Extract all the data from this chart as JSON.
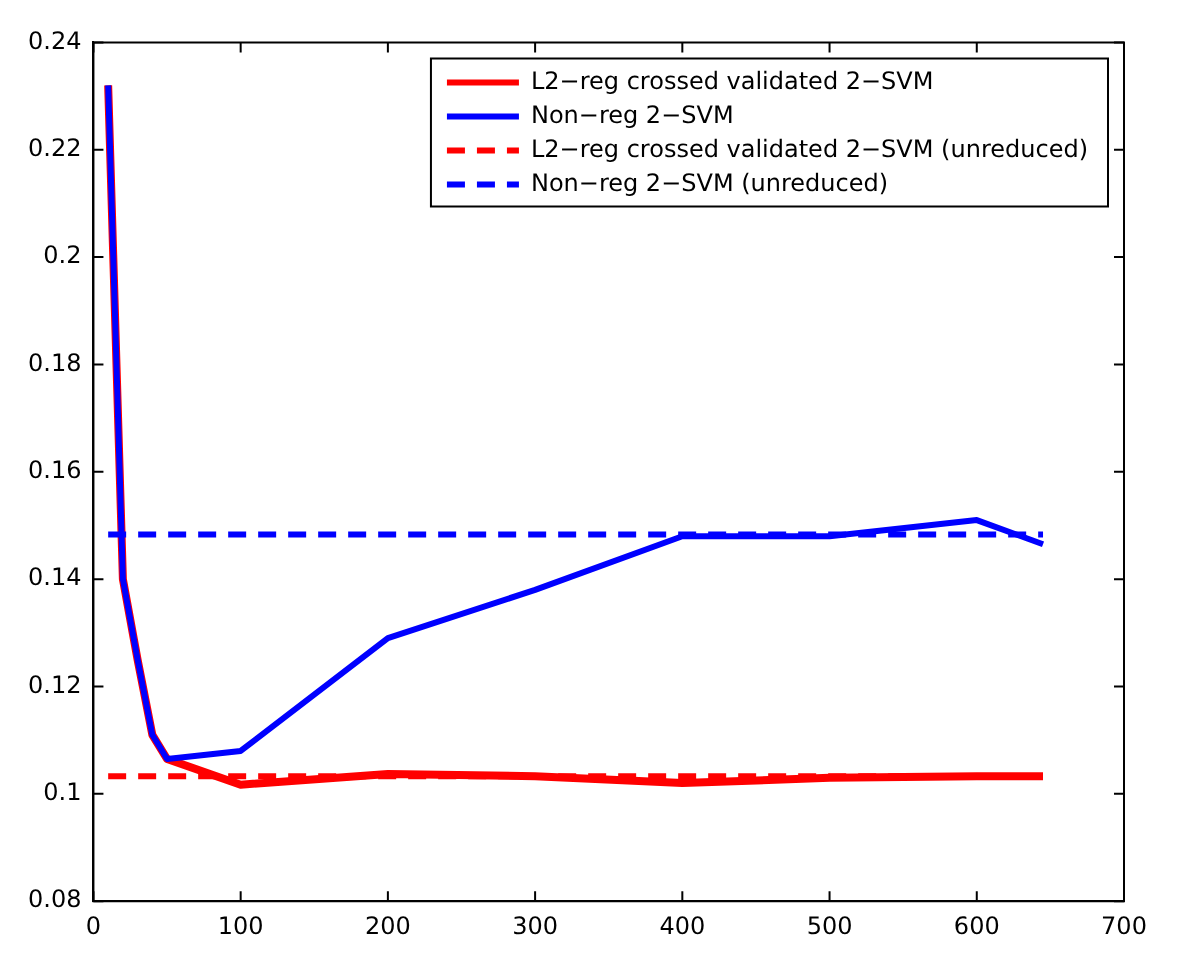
{
  "chart_data": {
    "type": "line",
    "xlim": [
      0,
      700
    ],
    "xticks": [
      0,
      100,
      200,
      300,
      400,
      500,
      600,
      700
    ],
    "ylim": [
      0.08,
      0.24
    ],
    "yticks": [
      0.08,
      0.1,
      0.12,
      0.14,
      0.16,
      0.18,
      0.2,
      0.22,
      0.24
    ],
    "grid": false,
    "legend": "top right",
    "marker": "none",
    "series": [
      {
        "name": "L2−reg crossed validated 2−SVM",
        "color": "#ff0000",
        "line_style": "solid",
        "x": [
          10,
          20,
          30,
          40,
          50,
          100,
          200,
          300,
          400,
          500,
          600,
          645
        ],
        "values": [
          0.232,
          0.14,
          0.125,
          0.111,
          0.1065,
          0.1017,
          0.1037,
          0.1033,
          0.102,
          0.103,
          0.1033,
          0.1033
        ]
      },
      {
        "name": "Non−reg 2−SVM",
        "color": "#0000ff",
        "line_style": "solid",
        "x": [
          10,
          20,
          30,
          40,
          50,
          100,
          200,
          300,
          400,
          500,
          600,
          645
        ],
        "values": [
          0.232,
          0.14,
          0.125,
          0.111,
          0.1065,
          0.108,
          0.129,
          0.138,
          0.148,
          0.148,
          0.151,
          0.1465
        ]
      },
      {
        "name": "L2−reg crossed validated 2−SVM (unreduced)",
        "color": "#ff0000",
        "line_style": "dashed",
        "x": [
          10,
          645
        ],
        "values": [
          0.1033,
          0.1033
        ]
      },
      {
        "name": "Non−reg 2−SVM (unreduced)",
        "color": "#0000ff",
        "line_style": "dashed",
        "x": [
          10,
          645
        ],
        "values": [
          0.1483,
          0.1483
        ]
      }
    ]
  }
}
